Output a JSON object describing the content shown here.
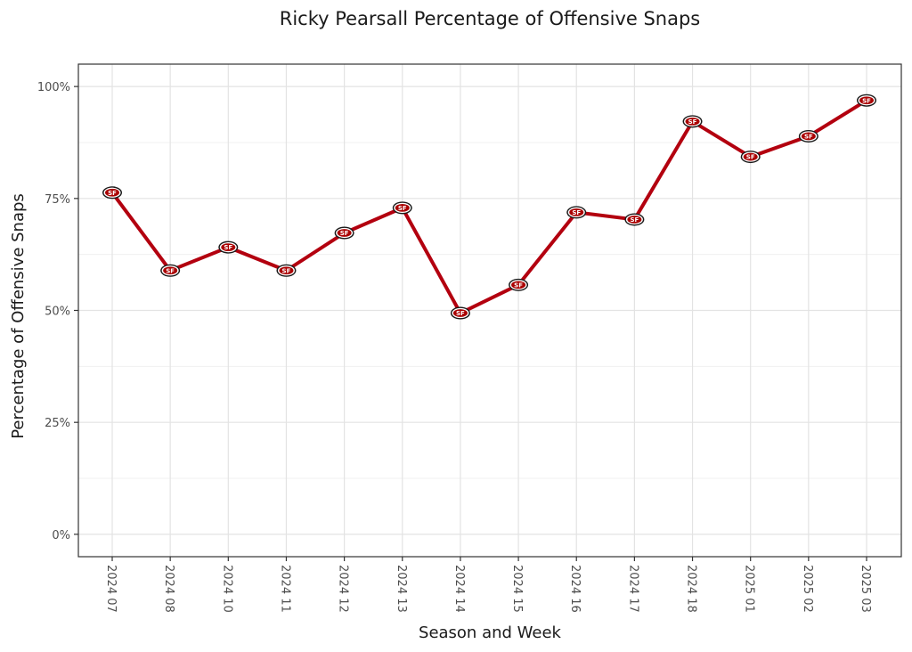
{
  "chart_data": {
    "type": "line",
    "title": "Ricky Pearsall Percentage of Offensive Snaps",
    "xlabel": "Season and Week",
    "ylabel": "Percentage of Offensive Snaps",
    "categories": [
      "2024 07",
      "2024 08",
      "2024 10",
      "2024 11",
      "2024 12",
      "2024 13",
      "2024 14",
      "2024 15",
      "2024 16",
      "2024 17",
      "2024 18",
      "2025 01",
      "2025 02",
      "2025 03"
    ],
    "series": [
      {
        "values": [
          76.3,
          58.9,
          64.1,
          58.9,
          67.3,
          72.9,
          49.4,
          55.7,
          71.9,
          70.3,
          92.2,
          84.3,
          88.9,
          96.9
        ],
        "color": "#b3000f",
        "marker": "49ers-logo"
      }
    ],
    "ylim": [
      -5,
      105
    ],
    "yticks": [
      0,
      25,
      50,
      75,
      100
    ],
    "ytick_labels": [
      "0%",
      "25%",
      "50%",
      "75%",
      "100%"
    ],
    "grid": true,
    "legend": "none",
    "colors": {
      "line": "#b3000f",
      "marker_outer": "#1a1a1a",
      "marker_inner": "#aa0000",
      "marker_text": "#ffffff"
    },
    "marker_text": "SF"
  }
}
